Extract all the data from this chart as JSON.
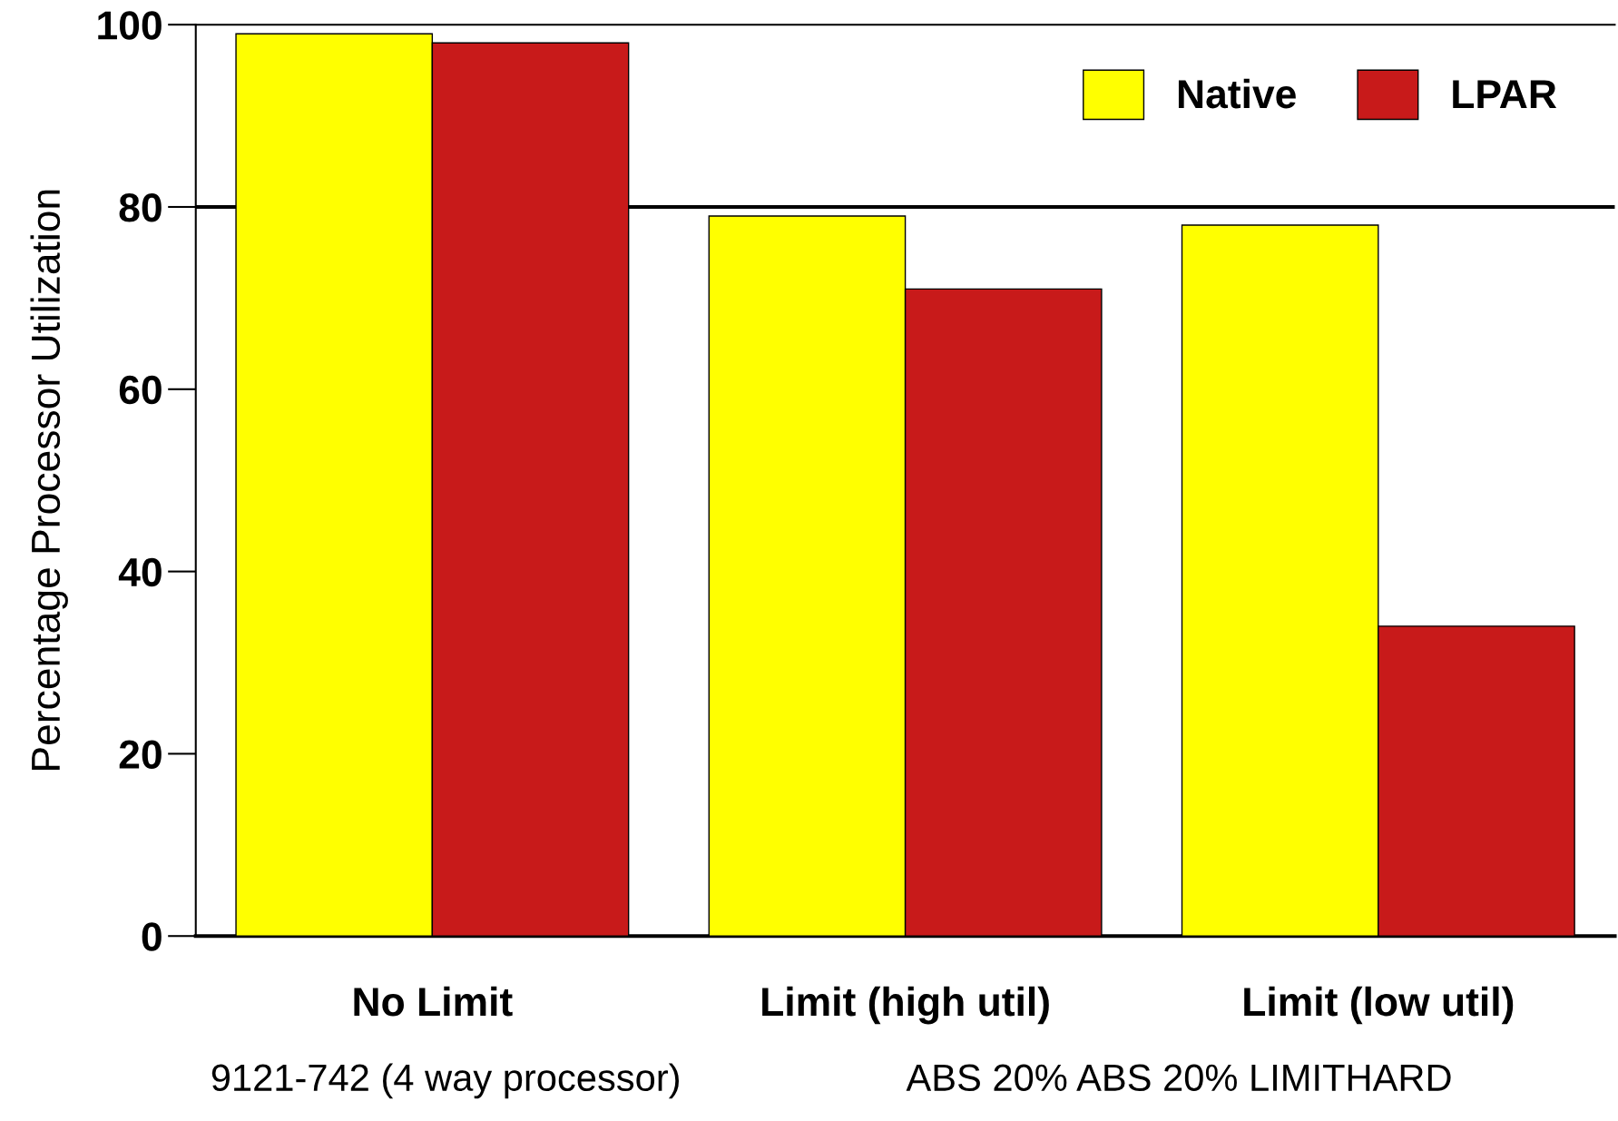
{
  "chart_data": {
    "type": "bar",
    "ylabel": "Percentage Processor Utilization",
    "categories": [
      "No Limit",
      "Limit (high util)",
      "Limit (low util)"
    ],
    "series": [
      {
        "name": "Native",
        "color": "#ffff00",
        "values": [
          99,
          79,
          78
        ]
      },
      {
        "name": "LPAR",
        "color": "#c81a1a",
        "values": [
          98,
          71,
          34
        ]
      }
    ],
    "ylim": [
      0,
      100
    ],
    "yticks": [
      0,
      20,
      40,
      60,
      80,
      100
    ],
    "ref_lines": [
      {
        "axis": "y",
        "value": 80,
        "color": "#000000"
      }
    ],
    "legend": "top right",
    "grid": false,
    "annotations": [
      "9121-742 (4 way processor)",
      "ABS 20% ABS 20% LIMITHARD"
    ]
  }
}
